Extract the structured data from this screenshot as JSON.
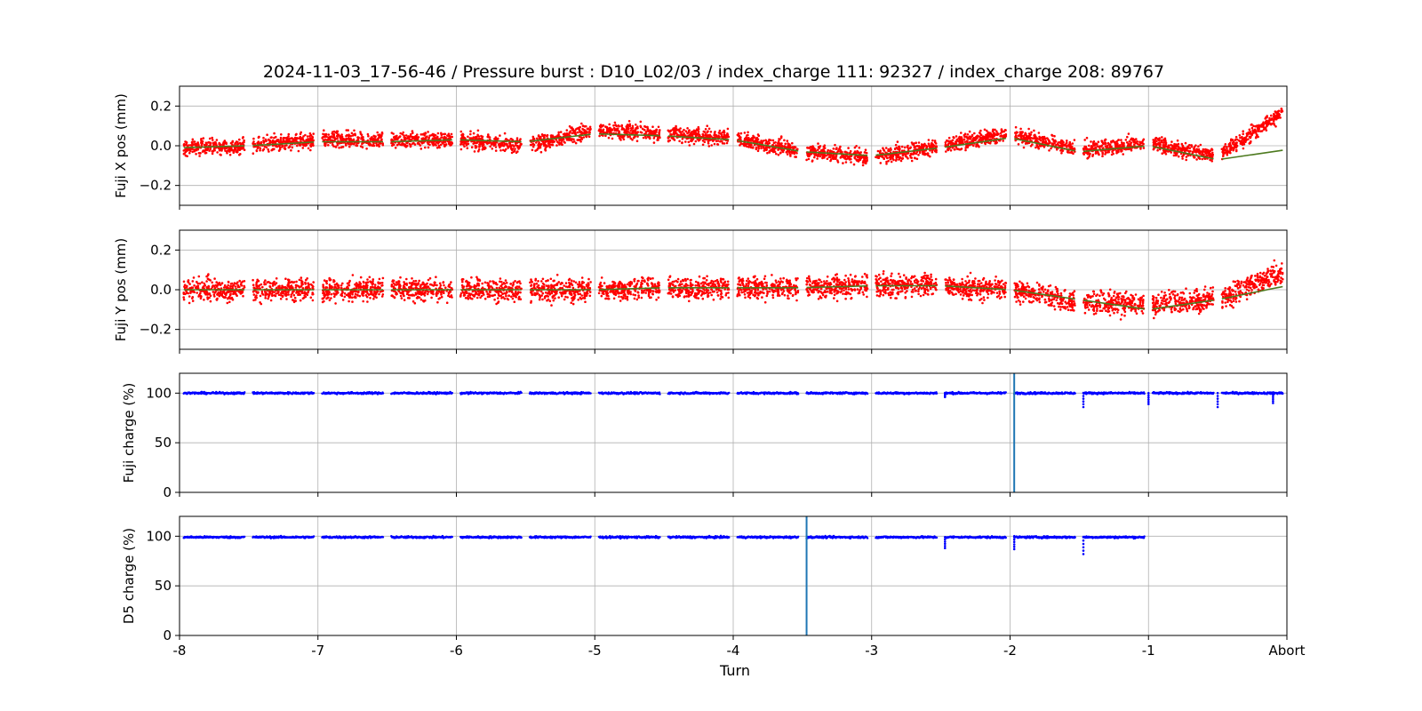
{
  "title": "2024-11-03_17-56-46 / Pressure burst : D10_L02/03 / index_charge 111: 92327 / index_charge 208: 89767",
  "x_axis": {
    "label": "Turn",
    "ticks": [
      -8,
      -7,
      -6,
      -5,
      -4,
      -3,
      -2,
      -1,
      0
    ],
    "tick_labels": [
      "-8",
      "-7",
      "-6",
      "-5",
      "-4",
      "-3",
      "-2",
      "-1",
      "Abort"
    ],
    "range": [
      -8,
      0
    ]
  },
  "colors": {
    "position_points": "#ff0000",
    "position_trend": "#4d7a1f",
    "charge_points": "#0000ff",
    "marker_line": "#1f77b4",
    "grid": "#b0b0b0"
  },
  "chart_data": [
    {
      "type": "scatter",
      "ylabel": "Fuji X pos (mm)",
      "ylim": [
        -0.3,
        0.3
      ],
      "yticks": [
        -0.2,
        0.0,
        0.2
      ],
      "ytick_labels": [
        "−0.2",
        "0.0",
        "0.2"
      ],
      "grid": true,
      "x": [
        -8.0,
        -7.5,
        -7.0,
        -6.5,
        -6.0,
        -5.5,
        -5.0,
        -4.5,
        -4.0,
        -3.5,
        -3.0,
        -2.5,
        -2.0,
        -1.5,
        -1.0,
        -0.5,
        0.0
      ],
      "series": [
        {
          "kind": "points",
          "y": [
            -0.01,
            0.0,
            0.03,
            0.03,
            0.03,
            0.0,
            0.08,
            0.06,
            0.04,
            -0.03,
            -0.06,
            0.0,
            0.06,
            -0.02,
            0.01,
            -0.05,
            0.18
          ],
          "spread": 0.035
        },
        {
          "kind": "trend",
          "y": [
            -0.01,
            0.0,
            0.02,
            0.02,
            0.03,
            0.02,
            0.06,
            0.05,
            0.03,
            -0.03,
            -0.05,
            -0.01,
            0.04,
            -0.03,
            0.0,
            -0.07,
            -0.02
          ]
        }
      ]
    },
    {
      "type": "scatter",
      "ylabel": "Fuji Y pos (mm)",
      "ylim": [
        -0.3,
        0.3
      ],
      "yticks": [
        -0.2,
        0.0,
        0.2
      ],
      "ytick_labels": [
        "−0.2",
        "0.0",
        "0.2"
      ],
      "grid": true,
      "x": [
        -8.0,
        -7.5,
        -7.0,
        -6.5,
        -6.0,
        -5.5,
        -5.0,
        -4.5,
        -4.0,
        -3.5,
        -3.0,
        -2.5,
        -2.0,
        -1.5,
        -1.0,
        -0.5,
        0.0
      ],
      "series": [
        {
          "kind": "points",
          "y": [
            0.0,
            0.0,
            0.0,
            0.0,
            0.0,
            0.0,
            0.0,
            0.01,
            0.01,
            0.01,
            0.02,
            0.02,
            0.0,
            -0.06,
            -0.07,
            -0.05,
            0.1
          ],
          "spread": 0.05
        },
        {
          "kind": "trend",
          "y": [
            0.0,
            0.0,
            0.0,
            0.0,
            0.0,
            0.0,
            0.0,
            0.01,
            0.01,
            0.01,
            0.02,
            0.02,
            0.0,
            -0.05,
            -0.1,
            -0.05,
            0.02
          ]
        }
      ]
    },
    {
      "type": "scatter",
      "ylabel": "Fuji charge (%)",
      "ylim": [
        0,
        120
      ],
      "yticks": [
        0,
        50,
        100
      ],
      "ytick_labels": [
        "0",
        "50",
        "100"
      ],
      "grid": true,
      "x_range": [
        -8,
        0
      ],
      "baseline": 100,
      "dips": [
        [
          -2.47,
          96
        ],
        [
          -1.47,
          86
        ],
        [
          -1.0,
          89
        ],
        [
          -0.5,
          86
        ],
        [
          -0.1,
          90
        ]
      ],
      "marker_x": -1.97
    },
    {
      "type": "scatter",
      "ylabel": "D5 charge (%)",
      "ylim": [
        0,
        120
      ],
      "yticks": [
        0,
        50,
        100
      ],
      "ytick_labels": [
        "0",
        "50",
        "100"
      ],
      "grid": true,
      "x_range": [
        -8,
        -1
      ],
      "baseline": 99,
      "dips": [
        [
          -2.47,
          88
        ],
        [
          -1.97,
          87
        ],
        [
          -1.47,
          82
        ]
      ],
      "marker_x": -3.47
    }
  ]
}
